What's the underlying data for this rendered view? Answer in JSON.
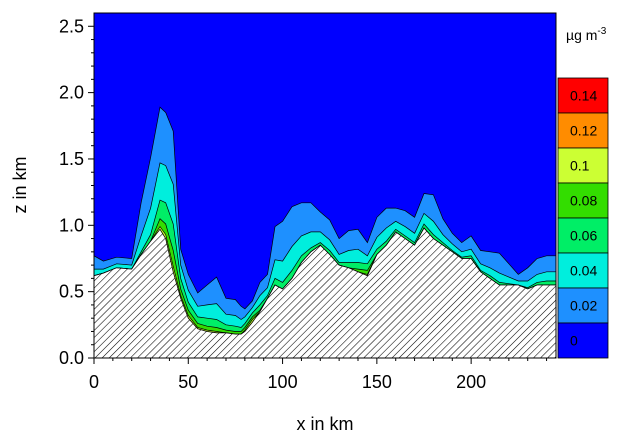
{
  "chart_data": {
    "type": "contour",
    "xlabel": "x in km",
    "ylabel": "z in km",
    "xlim": [
      0,
      245
    ],
    "ylim": [
      0,
      2.6
    ],
    "x_ticks": [
      0,
      50,
      100,
      150,
      200
    ],
    "x_tick_labels": [
      "0",
      "50",
      "100",
      "150",
      "200"
    ],
    "y_ticks": [
      0.0,
      0.5,
      1.0,
      1.5,
      2.0,
      2.5
    ],
    "y_tick_labels": [
      "0.0",
      "0.5",
      "1.0",
      "1.5",
      "2.0",
      "2.5"
    ],
    "colorbar": {
      "unit_base": "µg m",
      "unit_exp": "-3",
      "levels": [
        {
          "label": "0.14",
          "color": "#ff0000"
        },
        {
          "label": "0.12",
          "color": "#ff8c00"
        },
        {
          "label": "0.1",
          "color": "#ccff33"
        },
        {
          "label": "0.08",
          "color": "#33dd00"
        },
        {
          "label": "0.06",
          "color": "#00ee66"
        },
        {
          "label": "0.04",
          "color": "#00eedd"
        },
        {
          "label": "0.02",
          "color": "#1e90ff"
        },
        {
          "label": "0",
          "color": "#0000ff"
        }
      ]
    },
    "background_color": "#0000ff",
    "terrain": {
      "x": [
        0,
        5,
        12,
        20,
        25,
        30,
        35,
        38,
        42,
        46,
        50,
        55,
        60,
        65,
        70,
        75,
        78,
        80,
        84,
        88,
        92,
        96,
        100,
        105,
        110,
        115,
        120,
        125,
        130,
        135,
        140,
        145,
        150,
        155,
        160,
        165,
        170,
        175,
        180,
        185,
        190,
        195,
        200,
        205,
        210,
        215,
        220,
        225,
        230,
        235,
        240,
        245
      ],
      "z": [
        0.62,
        0.64,
        0.68,
        0.67,
        0.78,
        0.88,
        0.97,
        0.9,
        0.65,
        0.45,
        0.3,
        0.22,
        0.2,
        0.19,
        0.19,
        0.18,
        0.18,
        0.2,
        0.27,
        0.35,
        0.45,
        0.55,
        0.52,
        0.6,
        0.72,
        0.8,
        0.85,
        0.78,
        0.7,
        0.68,
        0.65,
        0.62,
        0.78,
        0.85,
        0.95,
        0.9,
        0.85,
        0.98,
        0.9,
        0.85,
        0.8,
        0.75,
        0.75,
        0.65,
        0.6,
        0.55,
        0.55,
        0.55,
        0.52,
        0.55,
        0.55,
        0.55
      ]
    },
    "plume_contours": [
      {
        "level_color": "#1e90ff",
        "dz": [
          0.1,
          0.06,
          0.05,
          0.05,
          0.25,
          0.38,
          0.42,
          0.4,
          0.4,
          0.12,
          0.12,
          0.1,
          0.15,
          0.2,
          0.12,
          0.12,
          0.1,
          0.06,
          0.05,
          0.1,
          0.1,
          0.25,
          0.3,
          0.3,
          0.25,
          0.22,
          0.15,
          0.15,
          0.12,
          0.15,
          0.15,
          0.1,
          0.15,
          0.15,
          0.1,
          0.12,
          0.12,
          0.15,
          0.2,
          0.12,
          0.08,
          0.07,
          0.1,
          0.1,
          0.12,
          0.15,
          0.1,
          0.05,
          0.1,
          0.12,
          0.12,
          0.12
        ]
      },
      {
        "level_color": "#00eedd",
        "dz": [
          0.05,
          0.03,
          0.03,
          0.03,
          0.12,
          0.2,
          0.28,
          0.28,
          0.3,
          0.1,
          0.09,
          0.08,
          0.1,
          0.12,
          0.08,
          0.08,
          0.06,
          0.05,
          0.04,
          0.07,
          0.06,
          0.14,
          0.16,
          0.18,
          0.15,
          0.12,
          0.08,
          0.08,
          0.06,
          0.09,
          0.1,
          0.06,
          0.09,
          0.1,
          0.06,
          0.07,
          0.07,
          0.08,
          0.1,
          0.06,
          0.05,
          0.04,
          0.05,
          0.05,
          0.06,
          0.07,
          0.05,
          0.03,
          0.05,
          0.06,
          0.07,
          0.07
        ]
      },
      {
        "level_color": "#00ee66",
        "dz": [
          0.0,
          0.0,
          0.0,
          0.0,
          0.02,
          0.05,
          0.14,
          0.16,
          0.2,
          0.08,
          0.06,
          0.05,
          0.06,
          0.06,
          0.04,
          0.04,
          0.03,
          0.03,
          0.03,
          0.04,
          0.02,
          0.05,
          0.05,
          0.06,
          0.05,
          0.03,
          0.02,
          0.03,
          0.02,
          0.04,
          0.05,
          0.05,
          0.04,
          0.03,
          0.02,
          0.02,
          0.02,
          0.03,
          0.03,
          0.02,
          0.01,
          0.01,
          0.02,
          0.01,
          0.02,
          0.02,
          0.01,
          0.0,
          0.01,
          0.02,
          0.03,
          0.03
        ]
      },
      {
        "level_color": "#33dd00",
        "dz": [
          0.0,
          0.0,
          0.0,
          0.0,
          0.0,
          0.0,
          0.06,
          0.08,
          0.12,
          0.05,
          0.04,
          0.03,
          0.03,
          0.03,
          0.02,
          0.02,
          0.02,
          0.02,
          0.02,
          0.01,
          0.0,
          0.0,
          0.0,
          0.0,
          0.0,
          0.0,
          0.0,
          0.0,
          0.0,
          0.0,
          0.02,
          0.03,
          0.0,
          0.0,
          0.0,
          0.0,
          0.0,
          0.0,
          0.0,
          0.0,
          0.0,
          0.0,
          0.0,
          0.0,
          0.0,
          0.0,
          0.0,
          0.0,
          0.0,
          0.0,
          0.0,
          0.0
        ]
      },
      {
        "level_color": "#ccff33",
        "dz": [
          0.0,
          0.0,
          0.0,
          0.0,
          0.0,
          0.0,
          0.02,
          0.03,
          0.04,
          0.02,
          0.02,
          0.01,
          0.01,
          0.01,
          0.0,
          0.0,
          0.0,
          0.01,
          0.02,
          0.0,
          0.0,
          0.0,
          0.0,
          0.0,
          0.0,
          0.0,
          0.0,
          0.0,
          0.0,
          0.0,
          0.0,
          0.01,
          0.0,
          0.0,
          0.0,
          0.0,
          0.0,
          0.0,
          0.0,
          0.0,
          0.0,
          0.0,
          0.0,
          0.0,
          0.0,
          0.0,
          0.0,
          0.0,
          0.0,
          0.0,
          0.0,
          0.0
        ]
      }
    ]
  }
}
